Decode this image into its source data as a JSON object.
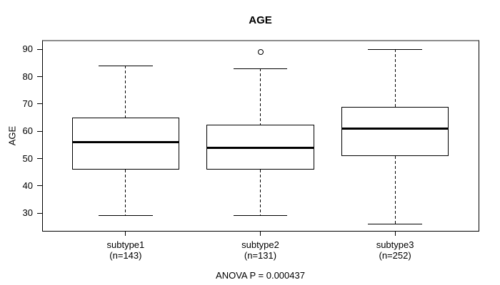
{
  "chart_data": {
    "type": "boxplot",
    "title": "AGE",
    "ylabel": "AGE",
    "xlabel": "",
    "annotation": "ANOVA P = 0.000437",
    "ylim": [
      23.5,
      93.2
    ],
    "xlim": [
      0.38,
      3.62
    ],
    "yticks": [
      30,
      40,
      50,
      60,
      70,
      80,
      90
    ],
    "grid": false,
    "box_width": 0.8,
    "cap_width_ratio": 0.5,
    "categories": [
      {
        "line1": "subtype1",
        "line2": "(n=143)"
      },
      {
        "line1": "subtype2",
        "line2": "(n=131)"
      },
      {
        "line1": "subtype3",
        "line2": "(n=252)"
      }
    ],
    "series": [
      {
        "name": "subtype1",
        "n": 143,
        "x": 1,
        "whisker_low": 29,
        "q1": 46,
        "median": 56,
        "q3": 65,
        "whisker_high": 84,
        "outliers": []
      },
      {
        "name": "subtype2",
        "n": 131,
        "x": 2,
        "whisker_low": 29,
        "q1": 46,
        "median": 54,
        "q3": 62.5,
        "whisker_high": 83,
        "outliers": [
          89
        ]
      },
      {
        "name": "subtype3",
        "n": 252,
        "x": 3,
        "whisker_low": 26,
        "q1": 51,
        "median": 61,
        "q3": 69,
        "whisker_high": 90,
        "outliers": []
      }
    ],
    "colors": {
      "line": "#000000",
      "background": "#ffffff",
      "frame_top": "#8c8c8c"
    }
  }
}
